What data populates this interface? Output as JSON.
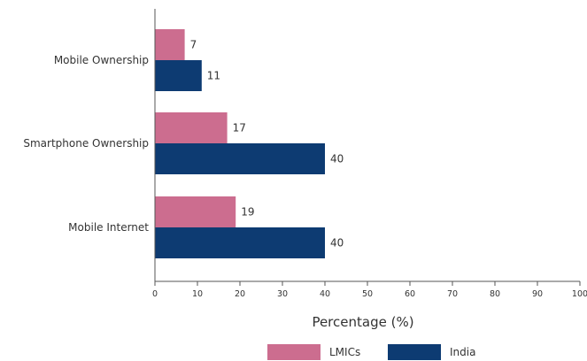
{
  "chart_data": {
    "type": "bar",
    "orientation": "horizontal",
    "categories": [
      "Mobile Ownership",
      "Smartphone Ownership",
      "Mobile Internet"
    ],
    "series": [
      {
        "name": "LMICs",
        "values": [
          7,
          17,
          19
        ],
        "color": "#cc6d8f"
      },
      {
        "name": "India",
        "values": [
          11,
          40,
          40
        ],
        "color": "#0d3b72"
      }
    ],
    "xlabel": "Percentage (%)",
    "ylabel": "",
    "xlim": [
      0,
      100
    ],
    "xticks": [
      "0",
      "10",
      "20",
      "30",
      "40",
      "50",
      "60",
      "70",
      "80",
      "90",
      "100"
    ],
    "grid": false,
    "legend_position": "bottom"
  }
}
